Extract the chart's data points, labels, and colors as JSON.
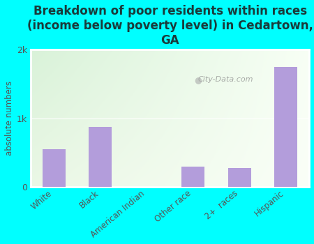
{
  "title": "Breakdown of poor residents within races\n(income below poverty level) in Cedartown,\nGA",
  "categories": [
    "White",
    "Black",
    "American Indian",
    "Other race",
    "2+  races",
    "Hispanic"
  ],
  "values": [
    550,
    870,
    0,
    300,
    280,
    1750
  ],
  "bar_color": "#b39ddb",
  "ylabel": "absolute numbers",
  "ylim": [
    0,
    2000
  ],
  "yticks": [
    0,
    1000,
    2000
  ],
  "ytick_labels": [
    "0",
    "1k",
    "2k"
  ],
  "background_color": "#00ffff",
  "title_color": "#1a3a3a",
  "title_fontsize": 12,
  "watermark": "City-Data.com",
  "grad_topleft": [
    0.85,
    0.95,
    0.85
  ],
  "grad_bottomright": [
    0.98,
    1.0,
    0.97
  ]
}
